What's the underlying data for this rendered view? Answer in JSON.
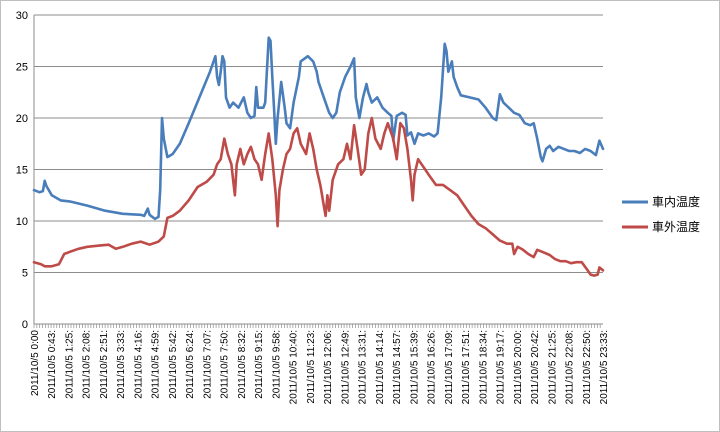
{
  "chart_data": {
    "type": "line",
    "title": "",
    "xlabel": "",
    "ylabel": "",
    "ylim": [
      0,
      30
    ],
    "yticks": [
      0,
      5,
      10,
      15,
      20,
      25,
      30
    ],
    "grid": "horizontal",
    "legend_placement": "right",
    "x_tick_labels": [
      "2011/10/5 0:00",
      "2011/10/5 0:43:",
      "2011/10/5 1:25:",
      "2011/10/5 2:08:",
      "2011/10/5 2:51:",
      "2011/10/5 3:33:",
      "2011/10/5 4:16:",
      "2011/10/5 4:59:",
      "2011/10/5 5:42:",
      "2011/10/5 6:24:",
      "2011/10/5 7:07:",
      "2011/10/5 7:50:",
      "2011/10/5 8:32:",
      "2011/10/5 9:15:",
      "2011/10/5 9:58:",
      "2011/10/5 10:40:",
      "2011/10/5 11:23:",
      "2011/10/5 12:06:",
      "2011/10/5 12:49:",
      "2011/10/5 13:31:",
      "2011/10/5 14:14:",
      "2011/10/5 14:57:",
      "2011/10/5 15:39:",
      "2011/10/5 16:26:",
      "2011/10/5 17:09:",
      "2011/10/5 17:51:",
      "2011/10/5 18:34:",
      "2011/10/5 19:17:",
      "2011/10/5 20:00:",
      "2011/10/5 20:42:",
      "2011/10/5 21:25:",
      "2011/10/5 22:08:",
      "2011/10/5 22:50:",
      "2011/10/5 23:33:"
    ],
    "series": [
      {
        "name": "車内温度",
        "color": "#4a7ebb",
        "points": [
          [
            0.0,
            13.0
          ],
          [
            0.3,
            12.8
          ],
          [
            0.5,
            12.9
          ],
          [
            0.6,
            13.9
          ],
          [
            0.7,
            13.4
          ],
          [
            1.0,
            12.5
          ],
          [
            1.5,
            12.0
          ],
          [
            2.0,
            11.9
          ],
          [
            3.0,
            11.5
          ],
          [
            4.0,
            11.0
          ],
          [
            5.0,
            10.7
          ],
          [
            6.0,
            10.6
          ],
          [
            6.2,
            10.5
          ],
          [
            6.4,
            11.2
          ],
          [
            6.5,
            10.6
          ],
          [
            6.8,
            10.2
          ],
          [
            7.0,
            10.4
          ],
          [
            7.1,
            13.0
          ],
          [
            7.2,
            20.0
          ],
          [
            7.3,
            18.0
          ],
          [
            7.5,
            16.2
          ],
          [
            7.8,
            16.5
          ],
          [
            8.2,
            17.5
          ],
          [
            8.7,
            19.5
          ],
          [
            9.3,
            22.0
          ],
          [
            9.9,
            24.5
          ],
          [
            10.2,
            26.0
          ],
          [
            10.3,
            24.0
          ],
          [
            10.4,
            23.2
          ],
          [
            10.5,
            24.5
          ],
          [
            10.6,
            26.0
          ],
          [
            10.7,
            25.5
          ],
          [
            10.8,
            22.0
          ],
          [
            11.0,
            21.0
          ],
          [
            11.2,
            21.5
          ],
          [
            11.5,
            21.0
          ],
          [
            11.8,
            22.0
          ],
          [
            12.0,
            20.5
          ],
          [
            12.2,
            20.0
          ],
          [
            12.4,
            20.2
          ],
          [
            12.5,
            23.0
          ],
          [
            12.6,
            21.0
          ],
          [
            12.9,
            21.0
          ],
          [
            13.0,
            21.5
          ],
          [
            13.2,
            27.8
          ],
          [
            13.3,
            27.5
          ],
          [
            13.4,
            24.0
          ],
          [
            13.5,
            21.0
          ],
          [
            13.6,
            17.5
          ],
          [
            13.7,
            20.0
          ],
          [
            13.9,
            23.5
          ],
          [
            14.1,
            21.0
          ],
          [
            14.2,
            19.5
          ],
          [
            14.4,
            19.0
          ],
          [
            14.6,
            21.5
          ],
          [
            14.9,
            24.0
          ],
          [
            15.0,
            25.5
          ],
          [
            15.4,
            26.0
          ],
          [
            15.7,
            25.5
          ],
          [
            15.9,
            24.5
          ],
          [
            16.0,
            23.5
          ],
          [
            16.3,
            22.0
          ],
          [
            16.6,
            20.5
          ],
          [
            16.8,
            20.0
          ],
          [
            17.0,
            20.5
          ],
          [
            17.2,
            22.5
          ],
          [
            17.5,
            24.0
          ],
          [
            17.8,
            25.0
          ],
          [
            18.0,
            25.8
          ],
          [
            18.1,
            22.0
          ],
          [
            18.3,
            20.0
          ],
          [
            18.5,
            22.0
          ],
          [
            18.7,
            23.3
          ],
          [
            18.8,
            22.5
          ],
          [
            19.0,
            21.5
          ],
          [
            19.3,
            22.0
          ],
          [
            19.6,
            21.0
          ],
          [
            19.9,
            20.5
          ],
          [
            20.1,
            20.2
          ],
          [
            20.2,
            17.8
          ],
          [
            20.4,
            20.2
          ],
          [
            20.7,
            20.5
          ],
          [
            20.9,
            20.3
          ],
          [
            21.0,
            18.3
          ],
          [
            21.2,
            18.6
          ],
          [
            21.4,
            17.5
          ],
          [
            21.6,
            18.5
          ],
          [
            21.9,
            18.3
          ],
          [
            22.2,
            18.5
          ],
          [
            22.5,
            18.2
          ],
          [
            22.7,
            18.5
          ],
          [
            22.9,
            22.0
          ],
          [
            23.1,
            27.2
          ],
          [
            23.2,
            26.5
          ],
          [
            23.3,
            24.5
          ],
          [
            23.5,
            25.5
          ],
          [
            23.6,
            24.0
          ],
          [
            23.8,
            23.0
          ],
          [
            24.0,
            22.2
          ],
          [
            24.5,
            22.0
          ],
          [
            25.0,
            21.8
          ],
          [
            25.4,
            21.0
          ],
          [
            25.8,
            20.0
          ],
          [
            26.0,
            19.8
          ],
          [
            26.2,
            22.3
          ],
          [
            26.4,
            21.5
          ],
          [
            26.7,
            21.0
          ],
          [
            27.0,
            20.5
          ],
          [
            27.3,
            20.3
          ],
          [
            27.6,
            19.5
          ],
          [
            27.9,
            19.3
          ],
          [
            28.1,
            19.5
          ],
          [
            28.3,
            18.0
          ],
          [
            28.5,
            16.2
          ],
          [
            28.6,
            15.8
          ],
          [
            28.8,
            17.0
          ],
          [
            29.0,
            17.3
          ],
          [
            29.2,
            16.8
          ],
          [
            29.5,
            17.2
          ],
          [
            29.8,
            17.0
          ],
          [
            30.1,
            16.8
          ],
          [
            30.4,
            16.8
          ],
          [
            30.7,
            16.6
          ],
          [
            31.0,
            17.0
          ],
          [
            31.3,
            16.8
          ],
          [
            31.6,
            16.4
          ],
          [
            31.8,
            17.8
          ],
          [
            32.0,
            17.0
          ]
        ]
      },
      {
        "name": "車外温度",
        "color": "#be4b48",
        "points": [
          [
            0.0,
            6.0
          ],
          [
            0.4,
            5.8
          ],
          [
            0.6,
            5.6
          ],
          [
            1.0,
            5.6
          ],
          [
            1.4,
            5.8
          ],
          [
            1.7,
            6.8
          ],
          [
            2.0,
            7.0
          ],
          [
            2.5,
            7.3
          ],
          [
            3.0,
            7.5
          ],
          [
            3.6,
            7.6
          ],
          [
            4.2,
            7.7
          ],
          [
            4.6,
            7.3
          ],
          [
            5.0,
            7.5
          ],
          [
            5.5,
            7.8
          ],
          [
            6.0,
            8.0
          ],
          [
            6.5,
            7.7
          ],
          [
            7.0,
            8.0
          ],
          [
            7.3,
            8.5
          ],
          [
            7.5,
            10.3
          ],
          [
            7.8,
            10.5
          ],
          [
            8.2,
            11.0
          ],
          [
            8.7,
            12.0
          ],
          [
            9.2,
            13.3
          ],
          [
            9.7,
            13.8
          ],
          [
            10.1,
            14.5
          ],
          [
            10.3,
            15.5
          ],
          [
            10.5,
            16.0
          ],
          [
            10.7,
            18.0
          ],
          [
            10.9,
            16.5
          ],
          [
            11.1,
            15.5
          ],
          [
            11.2,
            14.0
          ],
          [
            11.3,
            12.5
          ],
          [
            11.4,
            15.5
          ],
          [
            11.6,
            17.0
          ],
          [
            11.8,
            15.5
          ],
          [
            12.0,
            16.5
          ],
          [
            12.2,
            17.2
          ],
          [
            12.4,
            16.0
          ],
          [
            12.6,
            15.5
          ],
          [
            12.8,
            14.0
          ],
          [
            13.0,
            16.5
          ],
          [
            13.2,
            18.5
          ],
          [
            13.4,
            16.0
          ],
          [
            13.6,
            12.5
          ],
          [
            13.7,
            9.5
          ],
          [
            13.8,
            13.0
          ],
          [
            14.0,
            15.0
          ],
          [
            14.2,
            16.5
          ],
          [
            14.4,
            17.0
          ],
          [
            14.6,
            18.5
          ],
          [
            14.8,
            19.0
          ],
          [
            15.0,
            17.5
          ],
          [
            15.3,
            16.5
          ],
          [
            15.5,
            18.5
          ],
          [
            15.7,
            17.0
          ],
          [
            15.9,
            15.0
          ],
          [
            16.1,
            13.5
          ],
          [
            16.3,
            11.5
          ],
          [
            16.4,
            10.5
          ],
          [
            16.5,
            12.5
          ],
          [
            16.6,
            11.0
          ],
          [
            16.8,
            14.0
          ],
          [
            17.1,
            15.5
          ],
          [
            17.4,
            16.0
          ],
          [
            17.6,
            17.5
          ],
          [
            17.8,
            16.0
          ],
          [
            18.0,
            19.3
          ],
          [
            18.2,
            17.0
          ],
          [
            18.4,
            14.5
          ],
          [
            18.6,
            15.0
          ],
          [
            18.8,
            18.5
          ],
          [
            19.0,
            20.0
          ],
          [
            19.2,
            18.0
          ],
          [
            19.5,
            17.0
          ],
          [
            19.7,
            18.5
          ],
          [
            19.9,
            19.5
          ],
          [
            20.2,
            18.0
          ],
          [
            20.4,
            16.0
          ],
          [
            20.6,
            19.5
          ],
          [
            20.8,
            19.0
          ],
          [
            21.0,
            17.0
          ],
          [
            21.1,
            15.5
          ],
          [
            21.2,
            14.0
          ],
          [
            21.3,
            12.0
          ],
          [
            21.4,
            14.5
          ],
          [
            21.6,
            16.0
          ],
          [
            21.8,
            15.5
          ],
          [
            22.0,
            15.0
          ],
          [
            22.2,
            14.5
          ],
          [
            22.4,
            14.0
          ],
          [
            22.6,
            13.5
          ],
          [
            23.0,
            13.5
          ],
          [
            23.4,
            13.0
          ],
          [
            23.8,
            12.5
          ],
          [
            24.2,
            11.5
          ],
          [
            24.6,
            10.5
          ],
          [
            25.0,
            9.7
          ],
          [
            25.4,
            9.3
          ],
          [
            25.8,
            8.7
          ],
          [
            26.2,
            8.1
          ],
          [
            26.6,
            7.8
          ],
          [
            26.9,
            7.8
          ],
          [
            27.0,
            6.8
          ],
          [
            27.2,
            7.5
          ],
          [
            27.5,
            7.2
          ],
          [
            27.8,
            6.8
          ],
          [
            28.1,
            6.5
          ],
          [
            28.3,
            7.2
          ],
          [
            28.6,
            7.0
          ],
          [
            29.0,
            6.7
          ],
          [
            29.3,
            6.3
          ],
          [
            29.6,
            6.1
          ],
          [
            29.9,
            6.1
          ],
          [
            30.2,
            5.9
          ],
          [
            30.5,
            6.0
          ],
          [
            30.8,
            6.0
          ],
          [
            31.1,
            5.3
          ],
          [
            31.3,
            4.8
          ],
          [
            31.5,
            4.7
          ],
          [
            31.7,
            4.8
          ],
          [
            31.8,
            5.5
          ],
          [
            32.0,
            5.2
          ]
        ]
      }
    ]
  }
}
